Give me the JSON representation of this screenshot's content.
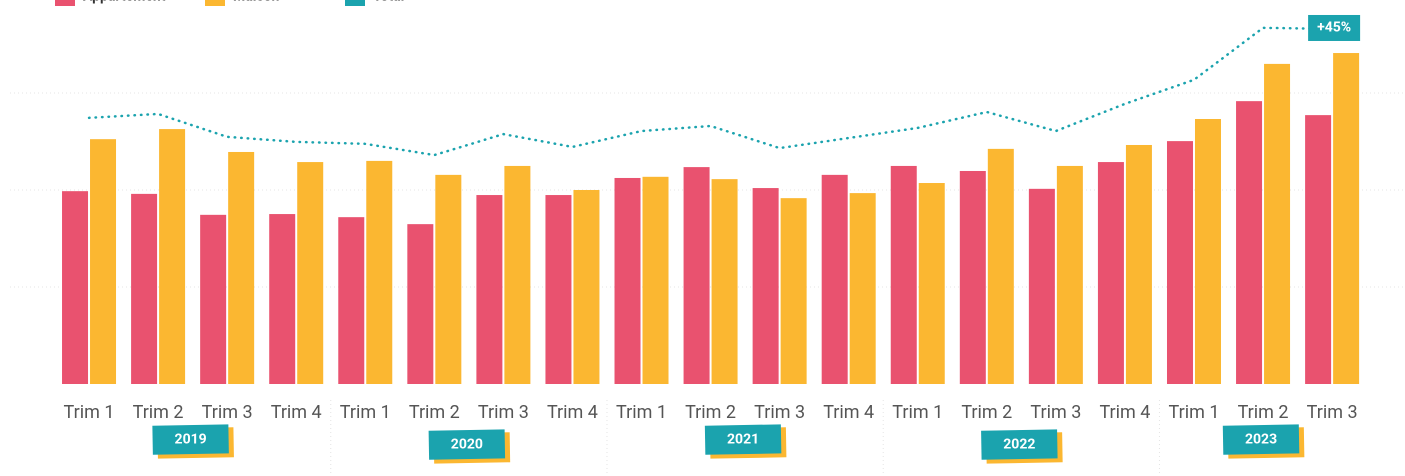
{
  "chart_data": {
    "type": "bar",
    "categories": [
      "Trim 1",
      "Trim 2",
      "Trim 3",
      "Trim 4",
      "Trim 1",
      "Trim 2",
      "Trim 3",
      "Trim 4",
      "Trim 1",
      "Trim 2",
      "Trim 3",
      "Trim 4",
      "Trim 1",
      "Trim 2",
      "Trim 3",
      "Trim 4",
      "Trim 1",
      "Trim 2",
      "Trim 3"
    ],
    "groups": [
      {
        "label": "2019",
        "count": 4
      },
      {
        "label": "2020",
        "count": 4
      },
      {
        "label": "2021",
        "count": 4
      },
      {
        "label": "2022",
        "count": 4
      },
      {
        "label": "2023",
        "count": 3
      }
    ],
    "series": [
      {
        "name": "Appartement",
        "color": "#e9526f",
        "type": "bar",
        "values": [
          49.7,
          49.0,
          43.6,
          43.8,
          43.0,
          41.2,
          48.7,
          48.7,
          53.1,
          55.9,
          50.5,
          53.9,
          56.2,
          54.9,
          50.3,
          57.2,
          62.6,
          72.9,
          69.3
        ]
      },
      {
        "name": "Maison",
        "color": "#fbb731",
        "type": "bar",
        "values": [
          63.1,
          65.7,
          59.8,
          57.2,
          57.5,
          53.9,
          56.2,
          50.0,
          53.4,
          52.8,
          47.9,
          49.2,
          51.8,
          60.6,
          56.2,
          61.6,
          68.3,
          82.5,
          85.3
        ]
      },
      {
        "name": "Total",
        "color": "#1ba3ae",
        "type": "line",
        "values": [
          68.6,
          69.6,
          63.7,
          62.4,
          61.9,
          59.0,
          64.4,
          61.1,
          65.2,
          66.5,
          60.8,
          63.4,
          66.0,
          70.1,
          65.2,
          72.2,
          78.4,
          91.8,
          91.5
        ]
      }
    ],
    "annotation": {
      "text": "+45%"
    },
    "ylim": [
      0,
      100
    ],
    "yticks": [
      0,
      25,
      50,
      75
    ],
    "grid": true
  }
}
